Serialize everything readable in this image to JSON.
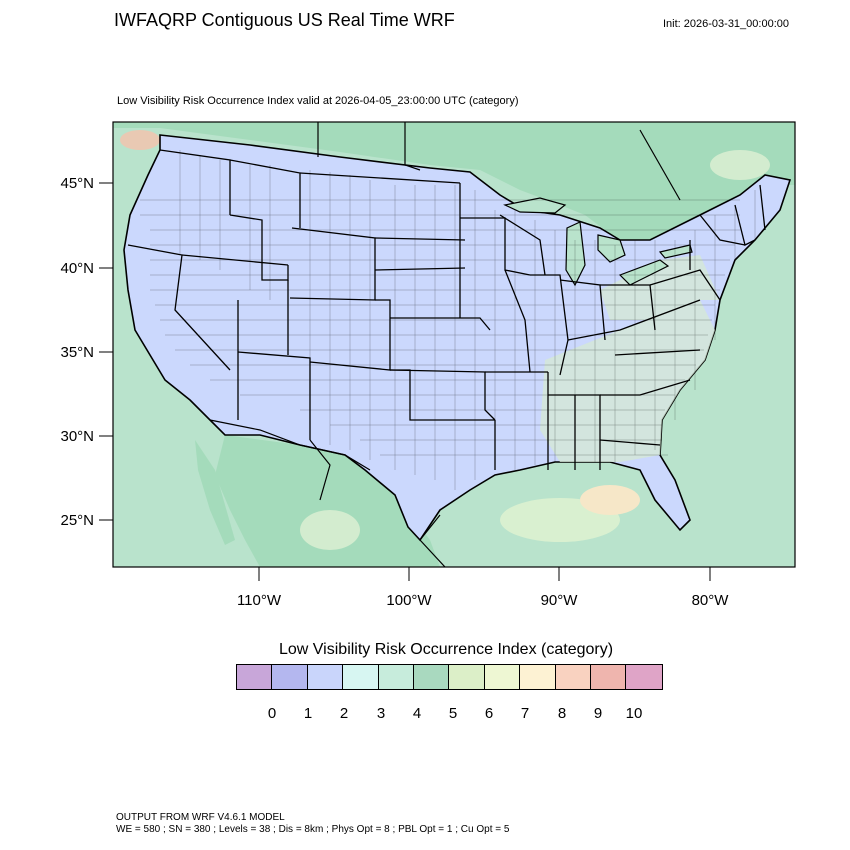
{
  "header": {
    "title": "IWFAQRP Contiguous US Real Time WRF",
    "init": "Init: 2026-03-31_00:00:00",
    "subtitle": "Low Visibility Risk Occurrence Index valid at 2026-04-05_23:00:00 UTC   (category)"
  },
  "map": {
    "lat_labels": [
      "45°N",
      "40°N",
      "35°N",
      "30°N",
      "25°N"
    ],
    "lon_labels": [
      "110°W",
      "100°W",
      "90°W",
      "80°W"
    ],
    "colors": {
      "ocean": "#b9e3cc",
      "land_outside": "#9fd8b8",
      "us_fill": "#cbd8fd",
      "borders": "#000000"
    }
  },
  "legend": {
    "title": "Low Visibility Risk Occurrence Index  (category)",
    "ticks": [
      "0",
      "1",
      "2",
      "3",
      "4",
      "5",
      "6",
      "7",
      "8",
      "9",
      "10"
    ],
    "colors": [
      "#c8a6d9",
      "#b4b7ef",
      "#c9d5fb",
      "#d7f6f2",
      "#c7ecdc",
      "#a9d9bf",
      "#dcefc8",
      "#eef7d3",
      "#fdf2d3",
      "#f9d2c0",
      "#efb5ae",
      "#dfa4c7"
    ]
  },
  "footer": {
    "line1": "OUTPUT FROM WRF V4.6.1 MODEL",
    "line2": "WE = 580 ; SN = 380 ; Levels = 38 ; Dis = 8km ; Phys Opt = 8 ; PBL Opt = 1 ; Cu Opt = 5"
  }
}
